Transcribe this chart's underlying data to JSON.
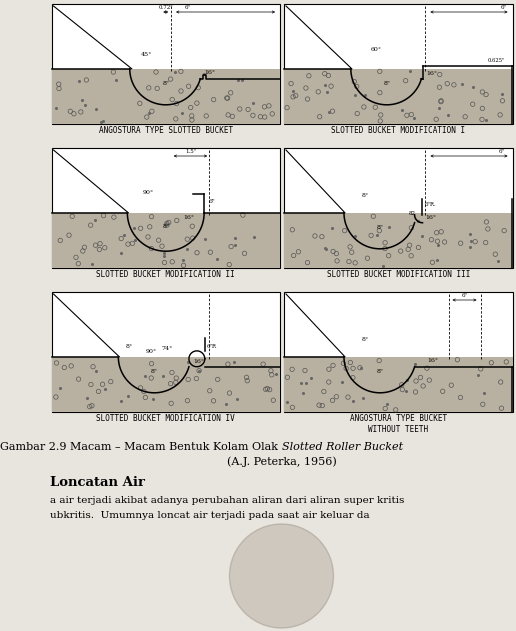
{
  "bg_color": "#e8e4de",
  "diagram_bg": "#ffffff",
  "ground_color": "#b8b0a0",
  "labels": {
    "top_left": "ANGOSTURA TYPE SLOTTED BUCKET",
    "top_right": "SLOTTED BUCKET MODIFICATION I",
    "mid_left": "SLOTTED BUCKET MODIFICATION II",
    "mid_right": "SLOTTED BUCKET MODIFICATION III",
    "bot_left": "SLOTTED BUCKET MODIFICATION IV",
    "bot_right": "ANGOSTURA TYPE BUCKET\nWITHOUT TEETH"
  },
  "title_normal": "Gambar 2.9 Macam – Macam Bentuk Kolam Olak ",
  "title_italic": "Slotted Roller Bucket",
  "title_line2": "(A.J. Peterka, 1956)",
  "section_heading": "Loncatan Air",
  "body1": "a air terjadi akibat adanya perubahan aliran dari aliran super kritis",
  "body2": "ubkritis.  Umumnya loncat air terjadi pada saat air keluar da"
}
